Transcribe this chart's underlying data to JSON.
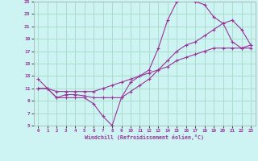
{
  "xlabel": "Windchill (Refroidissement éolien,°C)",
  "xlim": [
    -0.5,
    23.5
  ],
  "ylim": [
    5,
    25
  ],
  "xticks": [
    0,
    1,
    2,
    3,
    4,
    5,
    6,
    7,
    8,
    9,
    10,
    11,
    12,
    13,
    14,
    15,
    16,
    17,
    18,
    19,
    20,
    21,
    22,
    23
  ],
  "yticks": [
    5,
    7,
    9,
    11,
    13,
    15,
    17,
    19,
    21,
    23,
    25
  ],
  "bg_color": "#cef3f3",
  "grid_color": "#aaddcc",
  "line_color": "#993399",
  "line1_x": [
    0,
    1,
    2,
    3,
    4,
    5,
    6,
    7,
    8,
    9,
    10,
    11,
    12,
    13,
    14,
    15,
    16,
    17,
    18,
    19,
    20,
    21,
    22,
    23
  ],
  "line1_y": [
    12.5,
    11.0,
    9.5,
    9.5,
    9.5,
    9.5,
    8.5,
    6.5,
    5.0,
    9.5,
    12.0,
    13.0,
    14.0,
    17.5,
    22.0,
    25.0,
    25.5,
    25.0,
    24.5,
    22.5,
    21.5,
    18.5,
    17.5,
    18.0
  ],
  "line2_x": [
    0,
    1,
    2,
    3,
    4,
    5,
    6,
    7,
    8,
    9,
    10,
    11,
    12,
    13,
    14,
    15,
    16,
    17,
    18,
    19,
    20,
    21,
    22,
    23
  ],
  "line2_y": [
    11.0,
    11.0,
    9.5,
    10.0,
    10.0,
    9.8,
    9.5,
    9.5,
    9.5,
    9.5,
    10.5,
    11.5,
    12.5,
    14.0,
    15.5,
    17.0,
    18.0,
    18.5,
    19.5,
    20.5,
    21.5,
    22.0,
    20.5,
    18.0
  ],
  "line3_x": [
    0,
    1,
    2,
    3,
    4,
    5,
    6,
    7,
    8,
    9,
    10,
    11,
    12,
    13,
    14,
    15,
    16,
    17,
    18,
    19,
    20,
    21,
    22,
    23
  ],
  "line3_y": [
    11.0,
    11.0,
    10.5,
    10.5,
    10.5,
    10.5,
    10.5,
    11.0,
    11.5,
    12.0,
    12.5,
    13.0,
    13.5,
    14.0,
    14.5,
    15.5,
    16.0,
    16.5,
    17.0,
    17.5,
    17.5,
    17.5,
    17.5,
    17.5
  ]
}
